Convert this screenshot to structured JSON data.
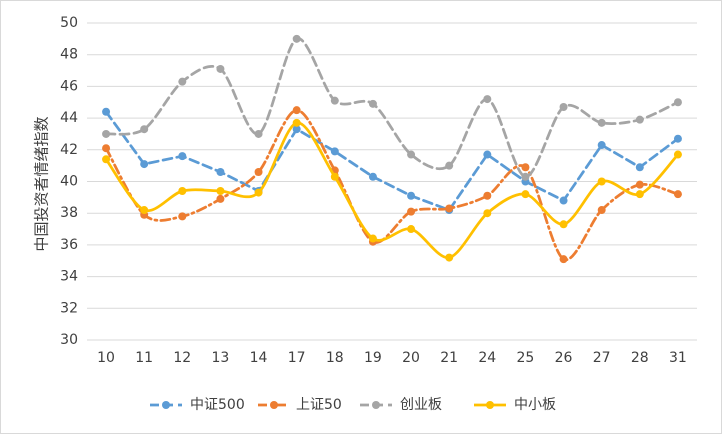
{
  "chart_data": {
    "type": "line",
    "title": "",
    "xlabel": "",
    "ylabel": "中国投资者情绪指数",
    "categories": [
      "10",
      "11",
      "12",
      "13",
      "14",
      "17",
      "18",
      "19",
      "20",
      "21",
      "24",
      "25",
      "26",
      "27",
      "28",
      "31"
    ],
    "ylim": [
      30,
      50
    ],
    "yticks": [
      30,
      32,
      34,
      36,
      38,
      40,
      42,
      44,
      46,
      48,
      50
    ],
    "grid": true,
    "legend_position": "bottom",
    "series": [
      {
        "name": "中证500",
        "color": "#5b9bd5",
        "dash": "dashed",
        "smooth": false,
        "values": [
          44.4,
          41.1,
          41.6,
          40.6,
          39.4,
          43.3,
          41.9,
          40.3,
          39.1,
          38.2,
          41.7,
          40.0,
          38.8,
          42.3,
          40.9,
          42.7
        ]
      },
      {
        "name": "上证50",
        "color": "#ed7d31",
        "dash": "dashdot",
        "smooth": true,
        "values": [
          42.1,
          37.9,
          37.8,
          38.9,
          40.6,
          44.5,
          40.7,
          36.2,
          38.1,
          38.3,
          39.1,
          40.9,
          35.1,
          38.2,
          39.8,
          39.2
        ]
      },
      {
        "name": "创业板",
        "color": "#a5a5a5",
        "dash": "dashed",
        "smooth": true,
        "values": [
          43.0,
          43.3,
          46.3,
          47.1,
          43.0,
          49.0,
          45.1,
          44.9,
          41.7,
          41.0,
          45.2,
          40.3,
          44.7,
          43.7,
          43.9,
          45.0
        ]
      },
      {
        "name": "中小板",
        "color": "#ffc000",
        "dash": "solid",
        "smooth": true,
        "values": [
          41.4,
          38.2,
          39.4,
          39.4,
          39.3,
          43.7,
          40.3,
          36.4,
          37.0,
          35.2,
          38.0,
          39.2,
          37.3,
          40.0,
          39.2,
          41.7
        ]
      }
    ]
  }
}
